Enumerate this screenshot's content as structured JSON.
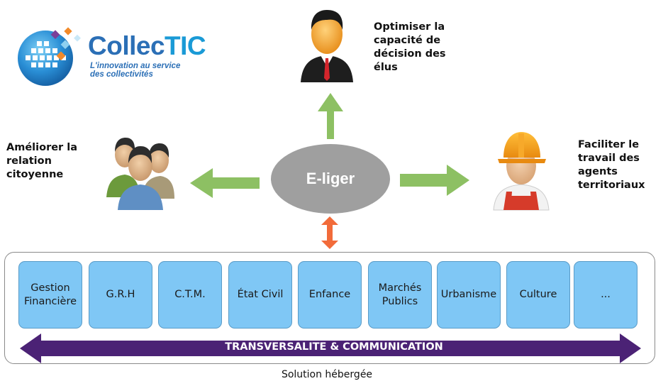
{
  "logo": {
    "name_part1": "Collec",
    "name_part2": "TIC",
    "tagline_line1": "L'innovation au service",
    "tagline_line2": "des collectivités"
  },
  "center": {
    "label": "E-liger"
  },
  "goals": {
    "top": "Optimiser la\ncapacité de\ndécision des\nélus",
    "left": "Améliorer la\nrelation\ncitoyenne",
    "right": "Faciliter le\ntravail des\nagents\nterritoriaux"
  },
  "modules": [
    "Gestion\nFinancière",
    "G.R.H",
    "C.T.M.",
    "État Civil",
    "Enfance",
    "Marchés\nPublics",
    "Urbanisme",
    "Culture",
    "..."
  ],
  "band": {
    "label": "TRANSVERSALITE & COMMUNICATION"
  },
  "caption": "Solution hébergée",
  "colors": {
    "arrow_green": "#8dc063",
    "arrow_orange": "#f26b3a",
    "ellipse_gray": "#9f9f9f",
    "module_blue": "#7fc7f5",
    "band_purple": "#4b2275",
    "logo_blue": "#2b6fb6"
  },
  "icons": {
    "top": "businessman-icon",
    "left": "citizens-group-icon",
    "right": "construction-worker-icon"
  }
}
